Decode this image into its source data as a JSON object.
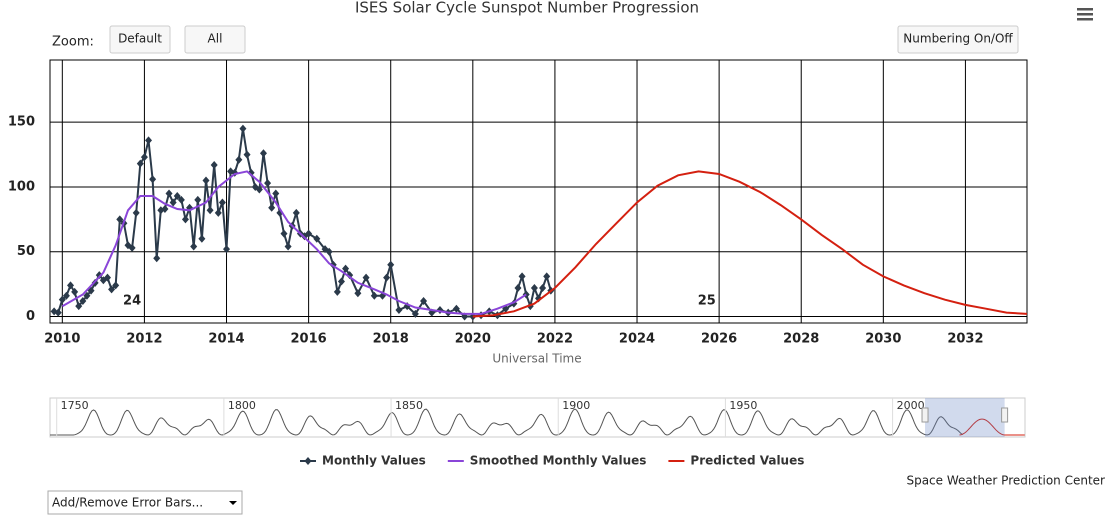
{
  "chart_data": {
    "type": "line",
    "title": "ISES Solar Cycle Sunspot Number Progression",
    "x_label": "Universal Time",
    "controls": {
      "zoom_label": "Zoom:",
      "buttons": [
        "Default",
        "All"
      ],
      "numbering": "Numbering On/Off",
      "dropdown": "Add/Remove Error Bars..."
    },
    "credit": "Space Weather Prediction Center",
    "xlim": [
      2009.7,
      2033.5
    ],
    "ylim": [
      -5,
      198
    ],
    "xticks": [
      2010,
      2012,
      2014,
      2016,
      2018,
      2020,
      2022,
      2024,
      2026,
      2028,
      2030,
      2032
    ],
    "yticks": [
      0,
      50,
      100,
      150
    ],
    "grid": true,
    "annotations": [
      {
        "text": "24",
        "x": 2011.7,
        "y": 12
      },
      {
        "text": "25",
        "x": 2025.7,
        "y": 12
      }
    ],
    "series": [
      {
        "name": "Monthly Values",
        "color": "#2b3a4a",
        "marker": "diamond",
        "x": [
          2009.8,
          2009.9,
          2010.0,
          2010.1,
          2010.2,
          2010.3,
          2010.4,
          2010.5,
          2010.6,
          2010.7,
          2010.8,
          2010.9,
          2011.0,
          2011.1,
          2011.2,
          2011.3,
          2011.4,
          2011.5,
          2011.6,
          2011.7,
          2011.8,
          2011.9,
          2012.0,
          2012.1,
          2012.2,
          2012.3,
          2012.4,
          2012.5,
          2012.6,
          2012.7,
          2012.8,
          2012.9,
          2013.0,
          2013.1,
          2013.2,
          2013.3,
          2013.4,
          2013.5,
          2013.6,
          2013.7,
          2013.8,
          2013.9,
          2014.0,
          2014.1,
          2014.2,
          2014.3,
          2014.4,
          2014.5,
          2014.6,
          2014.7,
          2014.8,
          2014.9,
          2015.0,
          2015.1,
          2015.2,
          2015.3,
          2015.4,
          2015.5,
          2015.6,
          2015.7,
          2015.8,
          2015.9,
          2016.0,
          2016.2,
          2016.4,
          2016.5,
          2016.6,
          2016.7,
          2016.8,
          2016.9,
          2017.0,
          2017.2,
          2017.4,
          2017.6,
          2017.8,
          2017.9,
          2018.0,
          2018.2,
          2018.4,
          2018.6,
          2018.8,
          2019.0,
          2019.2,
          2019.4,
          2019.6,
          2019.8,
          2020.0,
          2020.2,
          2020.4,
          2020.6,
          2020.8,
          2021.0,
          2021.1,
          2021.2,
          2021.3,
          2021.4,
          2021.5,
          2021.6,
          2021.7,
          2021.8,
          2021.9
        ],
        "values": [
          4,
          3,
          13,
          16,
          24,
          19,
          8,
          12,
          16,
          20,
          26,
          32,
          28,
          30,
          21,
          24,
          75,
          72,
          55,
          53,
          80,
          118,
          123,
          136,
          106,
          45,
          82,
          83,
          95,
          88,
          93,
          90,
          75,
          84,
          54,
          90,
          60,
          105,
          82,
          117,
          80,
          88,
          52,
          112,
          111,
          121,
          145,
          125,
          111,
          100,
          98,
          126,
          103,
          84,
          95,
          80,
          64,
          54,
          70,
          80,
          64,
          62,
          64,
          60,
          52,
          50,
          40,
          19,
          27,
          37,
          32,
          18,
          30,
          16,
          16,
          30,
          40,
          5,
          8,
          2,
          12,
          3,
          5,
          3,
          6,
          0,
          0,
          1,
          4,
          1,
          6,
          10,
          22,
          31,
          17,
          8,
          22,
          14,
          22,
          31,
          20
        ]
      },
      {
        "name": "Smoothed Monthly Values",
        "color": "#8a45d8",
        "x": [
          2010,
          2010.5,
          2011,
          2011.3,
          2011.6,
          2011.9,
          2012.2,
          2012.5,
          2012.8,
          2013.1,
          2013.5,
          2013.8,
          2014.2,
          2014.5,
          2014.8,
          2015.2,
          2015.5,
          2015.8,
          2016.2,
          2016.5,
          2016.8,
          2017.2,
          2017.6,
          2017.9,
          2018.2,
          2018.6,
          2019,
          2019.4,
          2019.8,
          2020.2,
          2020.6,
          2021,
          2021.3
        ],
        "values": [
          8,
          17,
          34,
          55,
          82,
          93,
          93,
          87,
          83,
          82,
          88,
          100,
          110,
          112,
          104,
          88,
          73,
          64,
          52,
          41,
          35,
          26,
          21,
          17,
          12,
          7,
          5,
          3,
          2,
          2,
          6,
          11,
          17
        ]
      },
      {
        "name": "Predicted Values",
        "color": "#d42010",
        "x": [
          2020,
          2020.5,
          2021,
          2021.5,
          2022,
          2022.5,
          2023,
          2023.5,
          2024,
          2024.5,
          2025,
          2025.5,
          2026,
          2026.5,
          2027,
          2027.5,
          2028,
          2028.5,
          2029,
          2029.5,
          2030,
          2030.5,
          2031,
          2031.5,
          2032,
          2032.5,
          2033,
          2033.5
        ],
        "values": [
          0,
          1,
          4,
          10,
          22,
          38,
          56,
          72,
          88,
          101,
          109,
          112,
          110,
          104,
          96,
          86,
          75,
          63,
          52,
          40,
          31,
          24,
          18,
          13,
          9,
          6,
          3,
          2
        ]
      }
    ],
    "navigator": {
      "xlim": [
        1748,
        2039.6
      ],
      "xticks": [
        1750,
        1800,
        1850,
        1900,
        1950,
        2000
      ],
      "selection": [
        2009.7,
        2033.5
      ]
    }
  }
}
